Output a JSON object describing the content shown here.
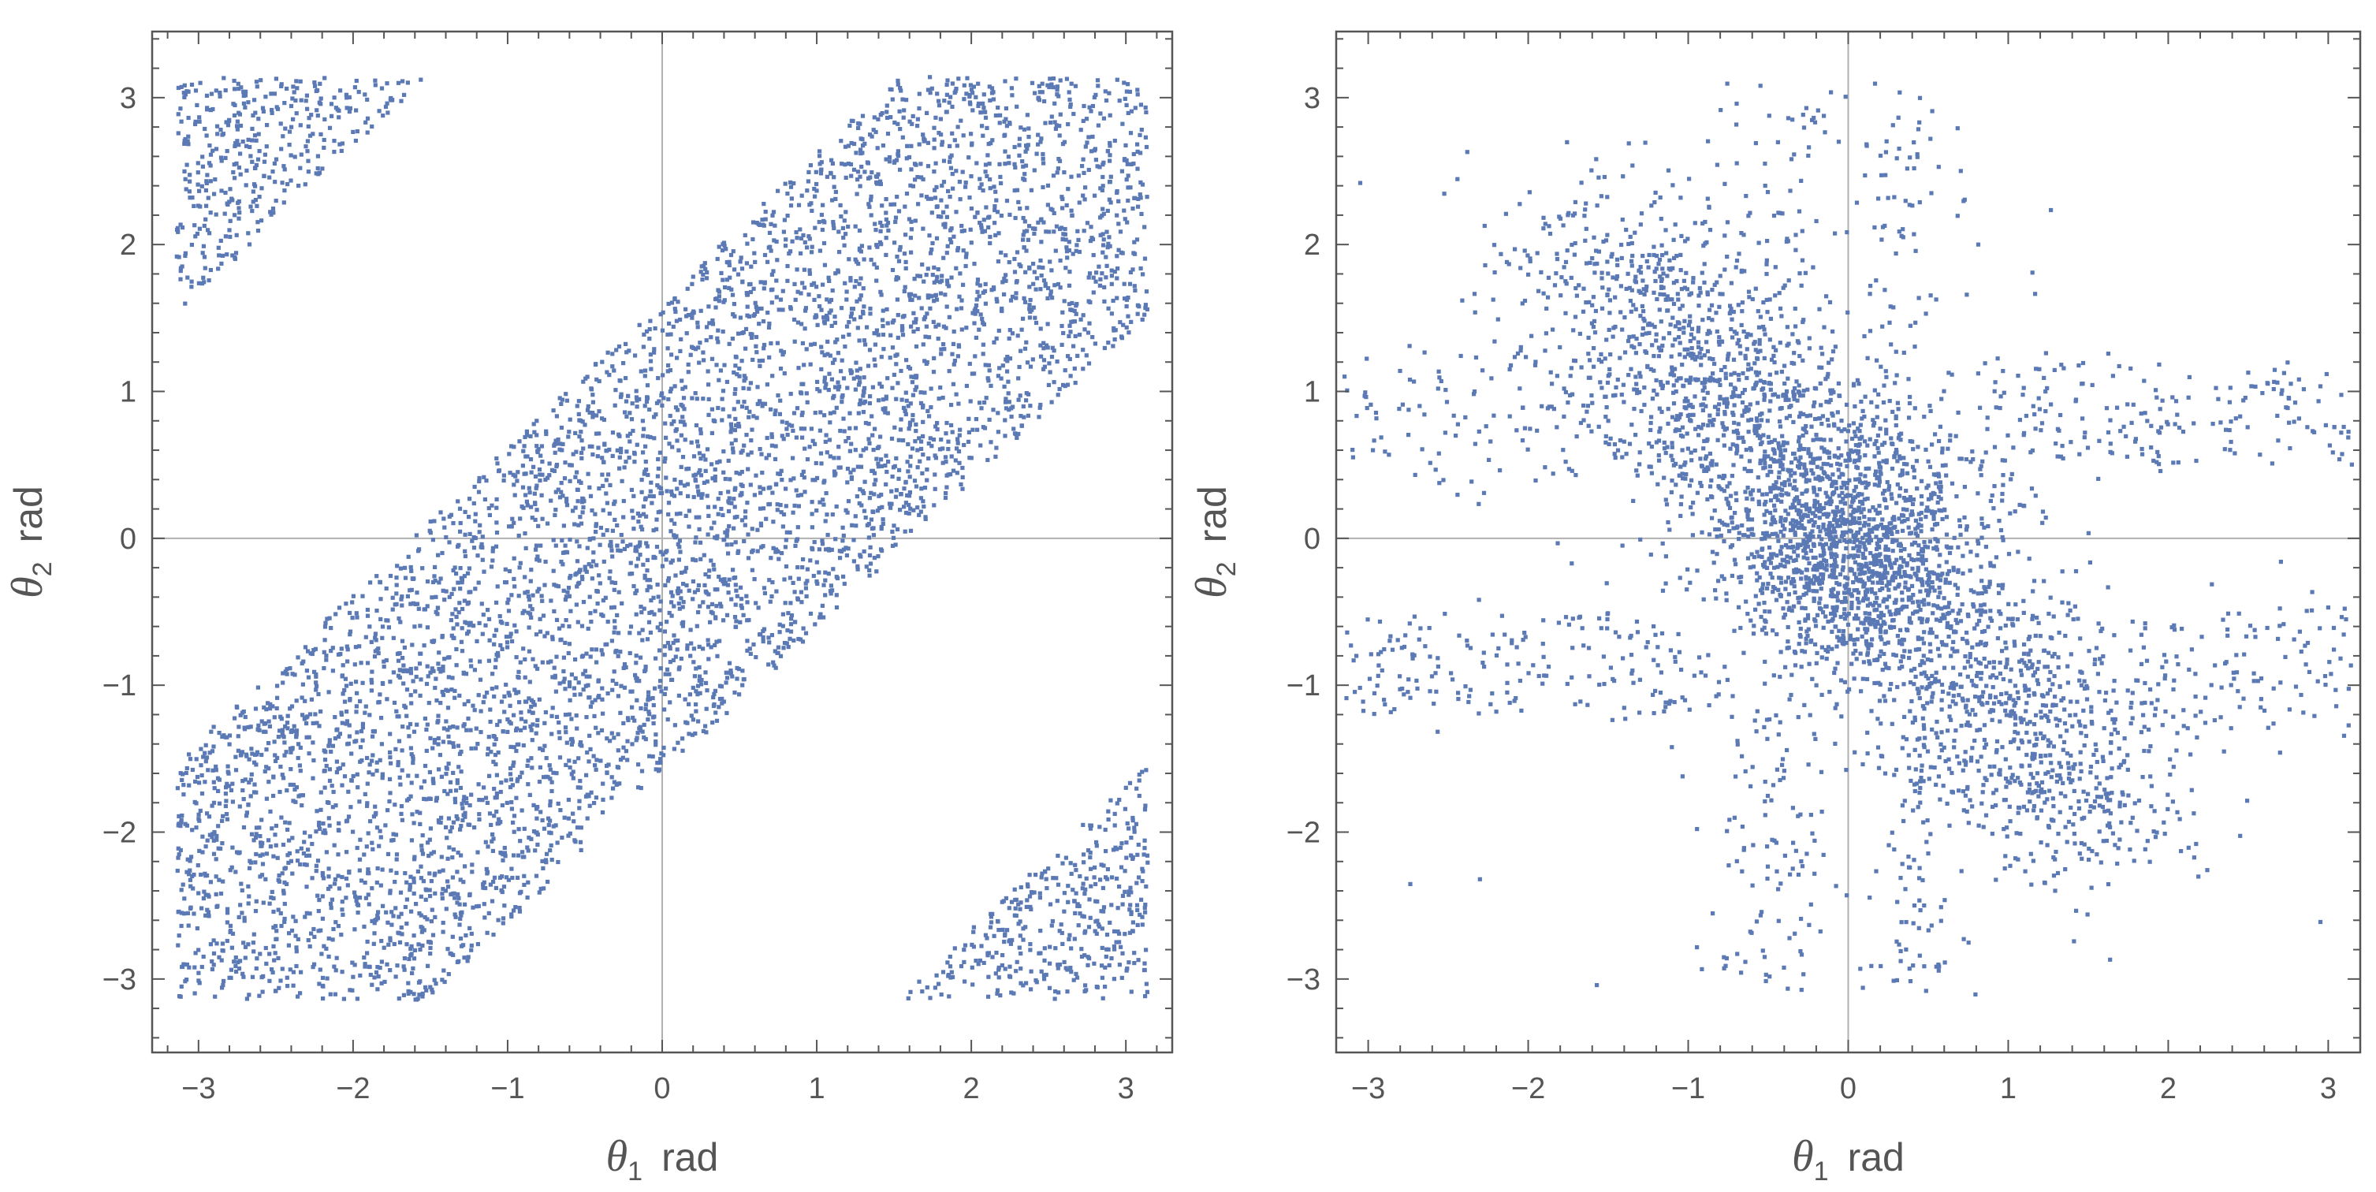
{
  "colors": {
    "points": "#5b79b4",
    "frame": "#555555",
    "zero_lines": "#b0b0b0"
  },
  "chart_data": [
    {
      "type": "scatter",
      "xlabel": {
        "symbol": "θ",
        "subscript": "1",
        "unit": "rad"
      },
      "ylabel": {
        "symbol": "θ",
        "subscript": "2",
        "unit": "rad"
      },
      "xlim": [
        -3.3,
        3.3
      ],
      "ylim": [
        -3.5,
        3.45
      ],
      "xticks": [
        "−3",
        "−2",
        "−1",
        "0",
        "1",
        "2",
        "3"
      ],
      "yticks": [
        "−3",
        "−2",
        "−1",
        "0",
        "1",
        "2",
        "3"
      ],
      "xtick_values": [
        -3,
        -2,
        -1,
        0,
        1,
        2,
        3
      ],
      "ytick_values": [
        -3,
        -2,
        -1,
        0,
        1,
        2,
        3
      ],
      "zero_lines": true,
      "grid": false,
      "legend": "none",
      "description_of_distribution": "uniform in diagonal band |θ2 − θ1| ≤ 1.6, wrapped periodically on [−π, π]",
      "point_count": 6000,
      "points": [
        [
          -3.1,
          1.5
        ],
        [
          -3.0,
          2.5
        ],
        [
          -2.6,
          2.9
        ],
        [
          -2.3,
          2.9
        ],
        [
          -1.4,
          -3.1
        ],
        [
          -1.0,
          -2.3
        ],
        [
          -0.5,
          -1.9
        ],
        [
          0.0,
          -1.6
        ],
        [
          0.0,
          1.6
        ],
        [
          0.5,
          2.1
        ],
        [
          1.0,
          2.6
        ],
        [
          1.5,
          3.1
        ],
        [
          1.6,
          0.0
        ],
        [
          2.0,
          0.4
        ],
        [
          2.5,
          0.9
        ],
        [
          3.1,
          1.5
        ],
        [
          1.5,
          -3.1
        ],
        [
          2.2,
          -2.6
        ],
        [
          3.1,
          -1.5
        ],
        [
          -3.1,
          -1.5
        ],
        [
          -2.0,
          -0.4
        ],
        [
          -1.6,
          0.0
        ],
        [
          -1.0,
          0.6
        ],
        [
          0.5,
          -1.0
        ],
        [
          1.0,
          0.0
        ],
        [
          -0.5,
          0.5
        ],
        [
          2.5,
          2.0
        ],
        [
          2.8,
          3.0
        ],
        [
          -2.8,
          -3.0
        ],
        [
          -2.5,
          -2.0
        ]
      ]
    },
    {
      "type": "scatter",
      "xlabel": {
        "symbol": "θ",
        "subscript": "1",
        "unit": "rad"
      },
      "ylabel": {
        "symbol": "θ",
        "subscript": "2",
        "unit": "rad"
      },
      "xlim": [
        -3.2,
        3.2
      ],
      "ylim": [
        -3.5,
        3.45
      ],
      "xticks": [
        "−3",
        "−2",
        "−1",
        "0",
        "1",
        "2",
        "3"
      ],
      "yticks": [
        "−3",
        "−2",
        "−1",
        "0",
        "1",
        "2",
        "3"
      ],
      "xtick_values": [
        -3,
        -2,
        -1,
        0,
        1,
        2,
        3
      ],
      "ytick_values": [
        -3,
        -2,
        -1,
        0,
        1,
        2,
        3
      ],
      "zero_lines": true,
      "grid": false,
      "legend": "none",
      "description_of_distribution": "dense core near origin, anti-diagonal lobes toward (−1.2, 1.8) and (1.2, −1.8), horizontal arms around θ2 ≈ ±0.8, vertical arms near θ1 ≈ ±0.4",
      "point_count": 4500,
      "points": [
        [
          0.0,
          0.0
        ],
        [
          -0.2,
          0.1
        ],
        [
          0.2,
          -0.1
        ],
        [
          -1.2,
          1.8
        ],
        [
          -1.5,
          1.6
        ],
        [
          -0.9,
          2.2
        ],
        [
          1.2,
          -1.8
        ],
        [
          1.5,
          -1.6
        ],
        [
          0.9,
          -2.2
        ],
        [
          -2.6,
          0.9
        ],
        [
          -2.0,
          0.7
        ],
        [
          2.0,
          0.9
        ],
        [
          2.6,
          0.8
        ],
        [
          -2.5,
          -0.9
        ],
        [
          2.5,
          -1.0
        ],
        [
          -0.4,
          2.9
        ],
        [
          0.5,
          3.1
        ],
        [
          -0.6,
          -3.1
        ],
        [
          0.5,
          -3.0
        ],
        [
          1.9,
          -1.3
        ],
        [
          -1.9,
          1.3
        ],
        [
          0.3,
          0.6
        ],
        [
          -0.3,
          -0.6
        ]
      ]
    }
  ]
}
